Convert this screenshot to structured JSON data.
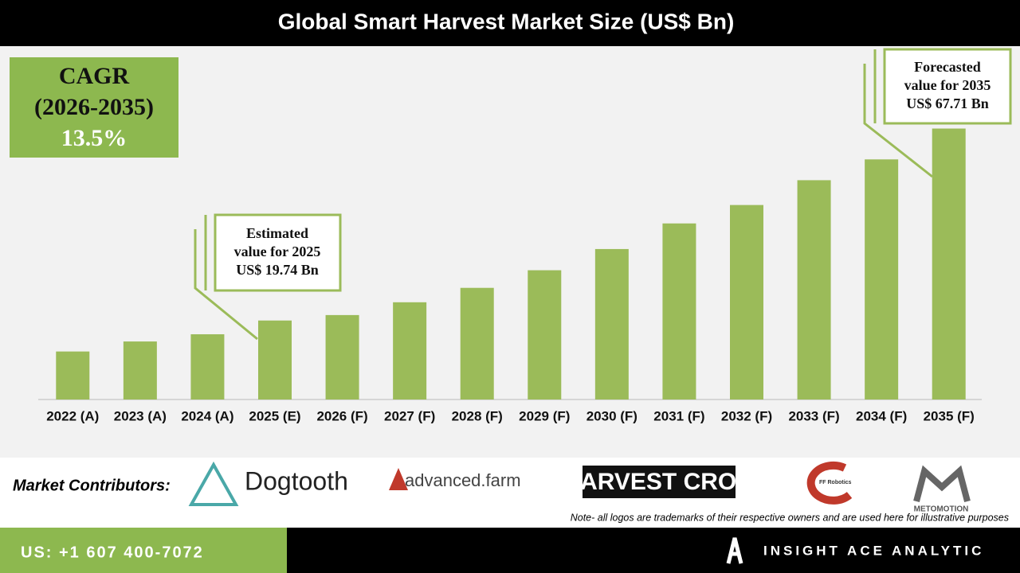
{
  "header": {
    "title": "Global Smart Harvest Market Size (US$ Bn)"
  },
  "cagr": {
    "label": "CAGR",
    "period": "(2026-2035)",
    "value": "13.5%"
  },
  "chart_data": {
    "type": "bar",
    "categories": [
      "2022 (A)",
      "2023 (A)",
      "2024 (A)",
      "2025 (E)",
      "2026 (F)",
      "2027 (F)",
      "2028 (F)",
      "2029 (F)",
      "2030 (F)",
      "2031 (F)",
      "2032 (F)",
      "2033 (F)",
      "2034 (F)",
      "2035 (F)"
    ],
    "values": [
      12.0,
      14.5,
      16.3,
      19.74,
      21.1,
      24.3,
      27.9,
      32.3,
      37.6,
      44.0,
      48.6,
      54.8,
      60.0,
      67.71
    ],
    "color": "#9bbb59",
    "ylim": [
      0,
      70
    ],
    "annotations": [
      {
        "lines": [
          "Estimated",
          "value for 2025",
          "US$ 19.74 Bn"
        ]
      },
      {
        "lines": [
          "Forecasted",
          "value for 2035",
          "US$ 67.71 Bn"
        ]
      }
    ]
  },
  "contributors": {
    "label": "Market Contributors:",
    "logos": [
      "Dogtooth",
      "advanced.farm",
      "HARVEST CROO",
      "FF Robotics",
      "METOMOTION"
    ],
    "note": "Note- all logos are trademarks of their respective owners and are used here for illustrative purposes"
  },
  "footer": {
    "phone": "US: +1 607 400-7072",
    "brand": "INSIGHT ACE ANALYTIC"
  }
}
